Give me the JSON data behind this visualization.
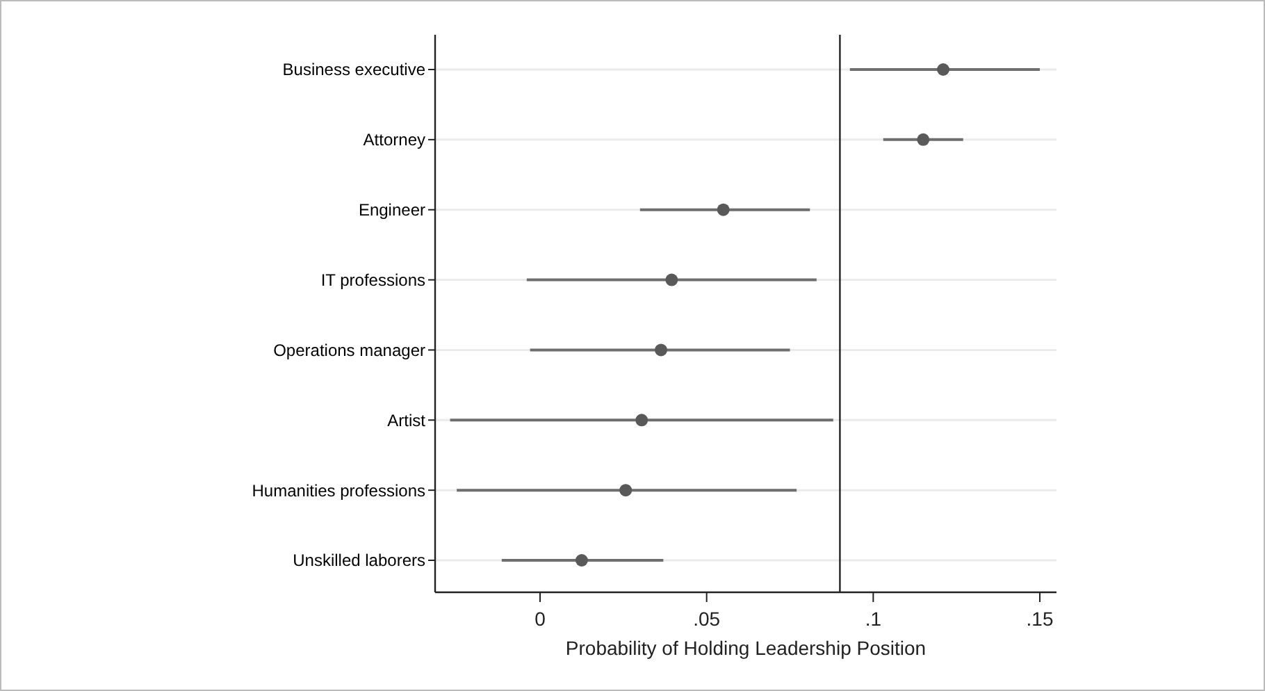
{
  "chart_data": {
    "type": "scatter",
    "orientation": "horizontal",
    "xlabel": "Probability of Holding Leadership Position",
    "categories": [
      "Business executive",
      "Attorney",
      "Engineer",
      "IT professions",
      "Operations manager",
      "Artist",
      "Humanities professions",
      "Unskilled laborers"
    ],
    "color": "#595959",
    "values": [
      0.121,
      0.115,
      0.055,
      0.0395,
      0.0363,
      0.0305,
      0.0257,
      0.0125
    ],
    "errors": [
      [
        0.093,
        0.15
      ],
      [
        0.103,
        0.127
      ],
      [
        0.03,
        0.081
      ],
      [
        -0.004,
        0.083
      ],
      [
        -0.003,
        0.075
      ],
      [
        -0.027,
        0.088
      ],
      [
        -0.025,
        0.077
      ],
      [
        -0.0115,
        0.037
      ]
    ],
    "xlim": [
      -0.0315,
      0.155
    ],
    "xticks": [
      0,
      {
        "value": 0.05,
        "label": ".05"
      },
      {
        "value": 0.1,
        "label": ".1"
      },
      {
        "value": 0.15,
        "label": ".15"
      }
    ],
    "ref_lines": [
      {
        "axis": "x",
        "value": 0.09,
        "color": "#222222"
      }
    ],
    "grid": "y",
    "marker": "circle"
  }
}
